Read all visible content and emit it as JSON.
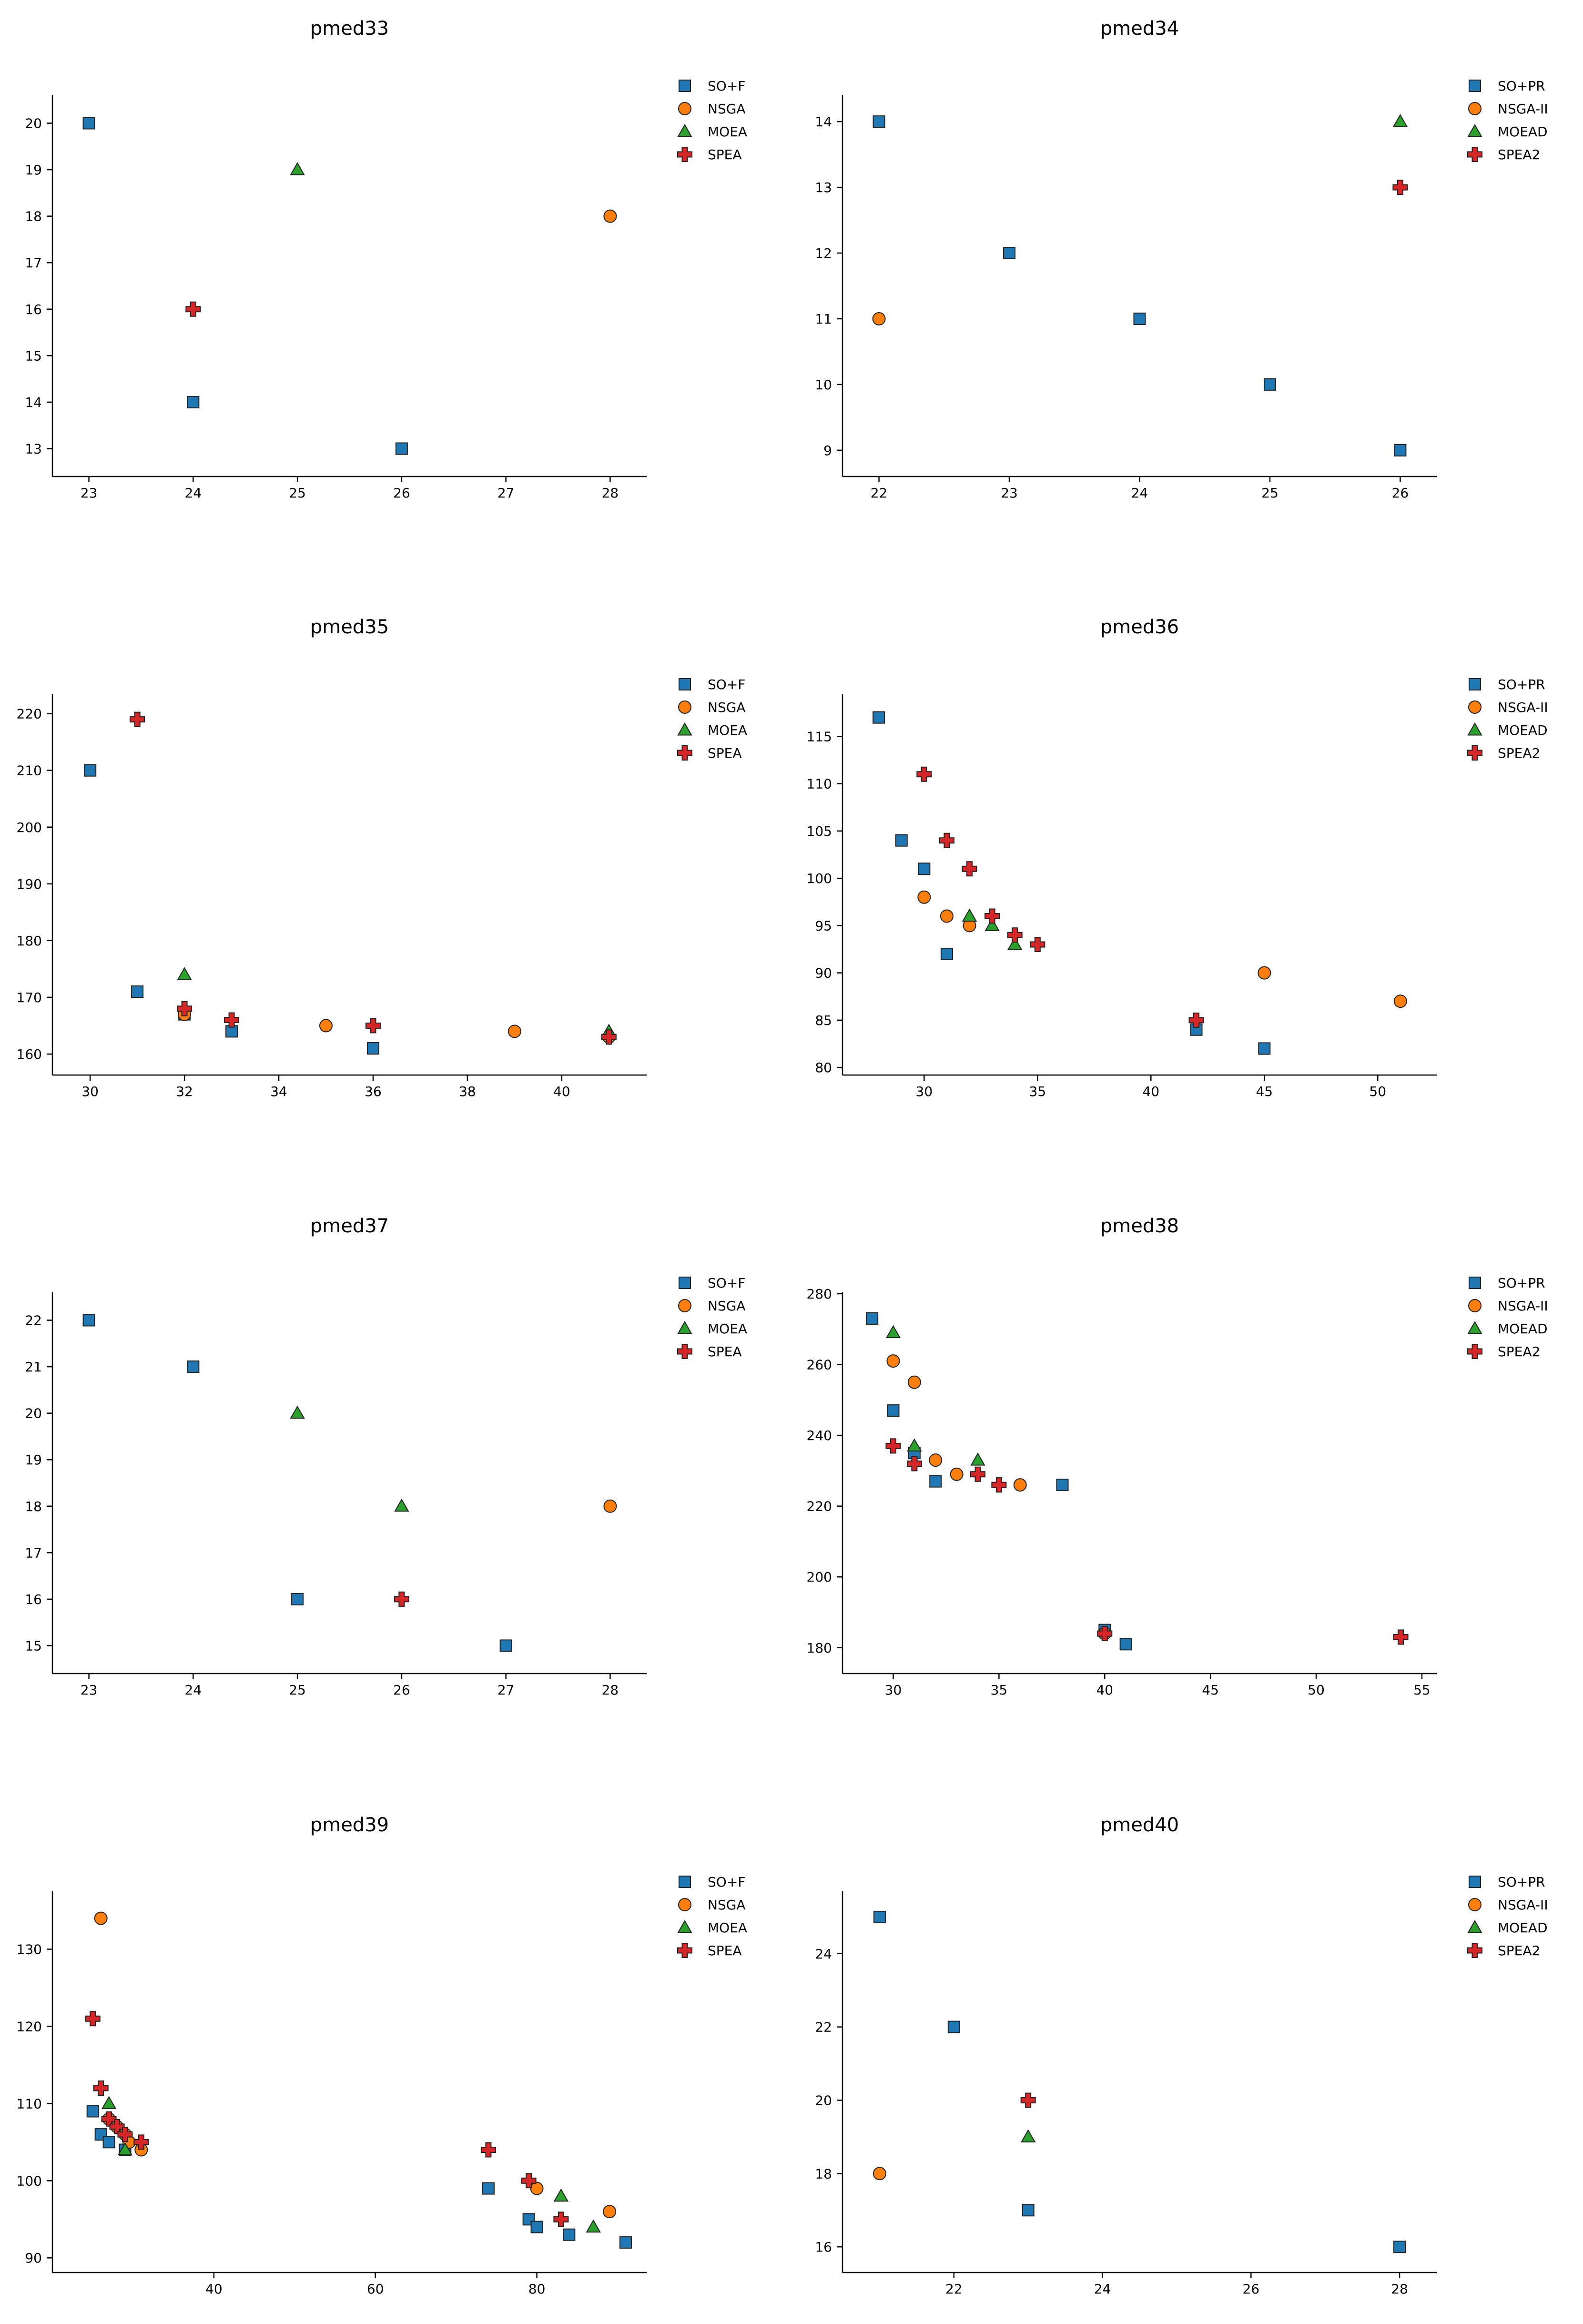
{
  "colors": {
    "SO+PR": "#1f77b4",
    "NSGA-II": "#ff7f0e",
    "MOEAD": "#2ca02c",
    "SPEA2": "#d62728"
  },
  "markers": {
    "SO+PR": "square",
    "NSGA-II": "circle",
    "MOEAD": "triangle",
    "SPEA2": "plus"
  },
  "chart_data": [
    {
      "type": "scatter",
      "title": "pmed33",
      "xlim": [
        22.65,
        28.35
      ],
      "ylim": [
        12.4,
        20.6
      ],
      "xticks": [
        23,
        24,
        25,
        26,
        27,
        28
      ],
      "yticks": [
        13,
        14,
        15,
        16,
        17,
        18,
        19,
        20
      ],
      "legend": [
        "SO+F",
        "NSGA",
        "MOEA",
        "SPEA"
      ],
      "series": [
        {
          "name": "SO+PR",
          "x": [
            23,
            24,
            26
          ],
          "y": [
            20,
            14,
            13
          ]
        },
        {
          "name": "NSGA-II",
          "x": [
            28
          ],
          "y": [
            18
          ]
        },
        {
          "name": "MOEAD",
          "x": [
            25
          ],
          "y": [
            19
          ]
        },
        {
          "name": "SPEA2",
          "x": [
            24
          ],
          "y": [
            16
          ]
        }
      ]
    },
    {
      "type": "scatter",
      "title": "pmed34",
      "xlim": [
        21.72,
        26.28
      ],
      "ylim": [
        8.6,
        14.4
      ],
      "xticks": [
        22,
        23,
        24,
        25,
        26
      ],
      "yticks": [
        9,
        10,
        11,
        12,
        13,
        14
      ],
      "legend": [
        "SO+PR",
        "NSGA-II",
        "MOEAD",
        "SPEA2"
      ],
      "series": [
        {
          "name": "SO+PR",
          "x": [
            22,
            23,
            24,
            25,
            26
          ],
          "y": [
            14,
            12,
            11,
            10,
            9
          ]
        },
        {
          "name": "NSGA-II",
          "x": [
            22
          ],
          "y": [
            11
          ]
        },
        {
          "name": "MOEAD",
          "x": [
            26
          ],
          "y": [
            14
          ]
        },
        {
          "name": "SPEA2",
          "x": [
            26
          ],
          "y": [
            13
          ]
        }
      ]
    },
    {
      "type": "scatter",
      "title": "pmed35",
      "xlim": [
        29.2,
        41.8
      ],
      "ylim": [
        156.3,
        223.5
      ],
      "xticks": [
        30,
        32,
        34,
        36,
        38,
        40
      ],
      "yticks": [
        160,
        170,
        180,
        190,
        200,
        210,
        220
      ],
      "legend": [
        "SO+F",
        "NSGA",
        "MOEA",
        "SPEA"
      ],
      "series": [
        {
          "name": "SO+PR",
          "x": [
            30,
            31,
            32,
            33,
            36
          ],
          "y": [
            210,
            171,
            167,
            164,
            161
          ]
        },
        {
          "name": "NSGA-II",
          "x": [
            32,
            35,
            39,
            41
          ],
          "y": [
            167,
            165,
            164,
            163
          ]
        },
        {
          "name": "MOEAD",
          "x": [
            32,
            41
          ],
          "y": [
            174,
            164
          ]
        },
        {
          "name": "SPEA2",
          "x": [
            31,
            32,
            33,
            36,
            41
          ],
          "y": [
            219,
            168,
            166,
            165,
            163
          ]
        }
      ]
    },
    {
      "type": "scatter",
      "title": "pmed36",
      "xlim": [
        26.4,
        52.6
      ],
      "ylim": [
        79.2,
        119.5
      ],
      "xticks": [
        30,
        35,
        40,
        45,
        50
      ],
      "yticks": [
        80,
        85,
        90,
        95,
        100,
        105,
        110,
        115
      ],
      "legend": [
        "SO+PR",
        "NSGA-II",
        "MOEAD",
        "SPEA2"
      ],
      "series": [
        {
          "name": "SO+PR",
          "x": [
            28,
            29,
            30,
            31,
            42,
            45
          ],
          "y": [
            117,
            104,
            101,
            92,
            84,
            82
          ]
        },
        {
          "name": "NSGA-II",
          "x": [
            30,
            31,
            32,
            45,
            51
          ],
          "y": [
            98,
            96,
            95,
            90,
            87
          ]
        },
        {
          "name": "MOEAD",
          "x": [
            32,
            33,
            34
          ],
          "y": [
            96,
            95,
            93
          ]
        },
        {
          "name": "SPEA2",
          "x": [
            30,
            31,
            32,
            33,
            34,
            35,
            42
          ],
          "y": [
            111,
            104,
            101,
            96,
            94,
            93,
            85
          ]
        }
      ]
    },
    {
      "type": "scatter",
      "title": "pmed37",
      "xlim": [
        22.65,
        28.35
      ],
      "ylim": [
        14.4,
        22.6
      ],
      "xticks": [
        23,
        24,
        25,
        26,
        27,
        28
      ],
      "yticks": [
        15,
        16,
        17,
        18,
        19,
        20,
        21,
        22
      ],
      "legend": [
        "SO+F",
        "NSGA",
        "MOEA",
        "SPEA"
      ],
      "series": [
        {
          "name": "SO+PR",
          "x": [
            23,
            24,
            25,
            27
          ],
          "y": [
            22,
            21,
            16,
            15
          ]
        },
        {
          "name": "NSGA-II",
          "x": [
            28
          ],
          "y": [
            18
          ]
        },
        {
          "name": "MOEAD",
          "x": [
            25,
            26
          ],
          "y": [
            20,
            18
          ]
        },
        {
          "name": "SPEA2",
          "x": [
            26
          ],
          "y": [
            16
          ]
        }
      ]
    },
    {
      "type": "scatter",
      "title": "pmed38",
      "xlim": [
        27.6,
        55.7
      ],
      "ylim": [
        172.7,
        280.4
      ],
      "xticks": [
        30,
        35,
        40,
        45,
        50,
        55
      ],
      "yticks": [
        180,
        200,
        220,
        240,
        260,
        280
      ],
      "legend": [
        "SO+PR",
        "NSGA-II",
        "MOEAD",
        "SPEA2"
      ],
      "series": [
        {
          "name": "SO+PR",
          "x": [
            29,
            30,
            31,
            32,
            38,
            40,
            41
          ],
          "y": [
            273,
            247,
            235,
            227,
            226,
            185,
            181
          ]
        },
        {
          "name": "NSGA-II",
          "x": [
            30,
            31,
            32,
            33,
            36,
            40
          ],
          "y": [
            261,
            255,
            233,
            229,
            226,
            184
          ]
        },
        {
          "name": "MOEAD",
          "x": [
            30,
            31,
            34
          ],
          "y": [
            269,
            237,
            233
          ]
        },
        {
          "name": "SPEA2",
          "x": [
            30,
            31,
            34,
            35,
            40,
            54
          ],
          "y": [
            237,
            232,
            229,
            226,
            184,
            183
          ]
        }
      ]
    },
    {
      "type": "scatter",
      "title": "pmed39",
      "xlim": [
        20.0,
        93.6
      ],
      "ylim": [
        88.1,
        137.5
      ],
      "xticks": [
        40,
        60,
        80
      ],
      "yticks": [
        90,
        100,
        110,
        120,
        130
      ],
      "legend": [
        "SO+F",
        "NSGA",
        "MOEA",
        "SPEA"
      ],
      "series": [
        {
          "name": "SO+PR",
          "x": [
            25,
            26,
            27,
            29,
            74,
            79,
            80,
            84,
            91
          ],
          "y": [
            109,
            106,
            105,
            104,
            99,
            95,
            94,
            93,
            92
          ]
        },
        {
          "name": "NSGA-II",
          "x": [
            26,
            27,
            28,
            29,
            29.5,
            31,
            80,
            89
          ],
          "y": [
            134,
            108,
            107,
            106,
            105,
            104,
            99,
            96
          ]
        },
        {
          "name": "MOEAD",
          "x": [
            27,
            29,
            83,
            87
          ],
          "y": [
            110,
            104,
            98,
            94
          ]
        },
        {
          "name": "SPEA2",
          "x": [
            25,
            26,
            27,
            28,
            29,
            31,
            74,
            79,
            83
          ],
          "y": [
            121,
            112,
            108,
            107,
            106,
            105,
            104,
            100,
            95
          ]
        }
      ]
    },
    {
      "type": "scatter",
      "title": "pmed40",
      "xlim": [
        20.5,
        28.5
      ],
      "ylim": [
        15.3,
        25.7
      ],
      "xticks": [
        22,
        24,
        26,
        28
      ],
      "yticks": [
        16,
        18,
        20,
        22,
        24
      ],
      "legend": [
        "SO+PR",
        "NSGA-II",
        "MOEAD",
        "SPEA2"
      ],
      "series": [
        {
          "name": "SO+PR",
          "x": [
            21,
            22,
            23,
            28
          ],
          "y": [
            25,
            22,
            17,
            16
          ]
        },
        {
          "name": "NSGA-II",
          "x": [
            21
          ],
          "y": [
            18
          ]
        },
        {
          "name": "MOEAD",
          "x": [
            23
          ],
          "y": [
            19
          ]
        },
        {
          "name": "SPEA2",
          "x": [
            23
          ],
          "y": [
            20
          ]
        }
      ]
    }
  ]
}
